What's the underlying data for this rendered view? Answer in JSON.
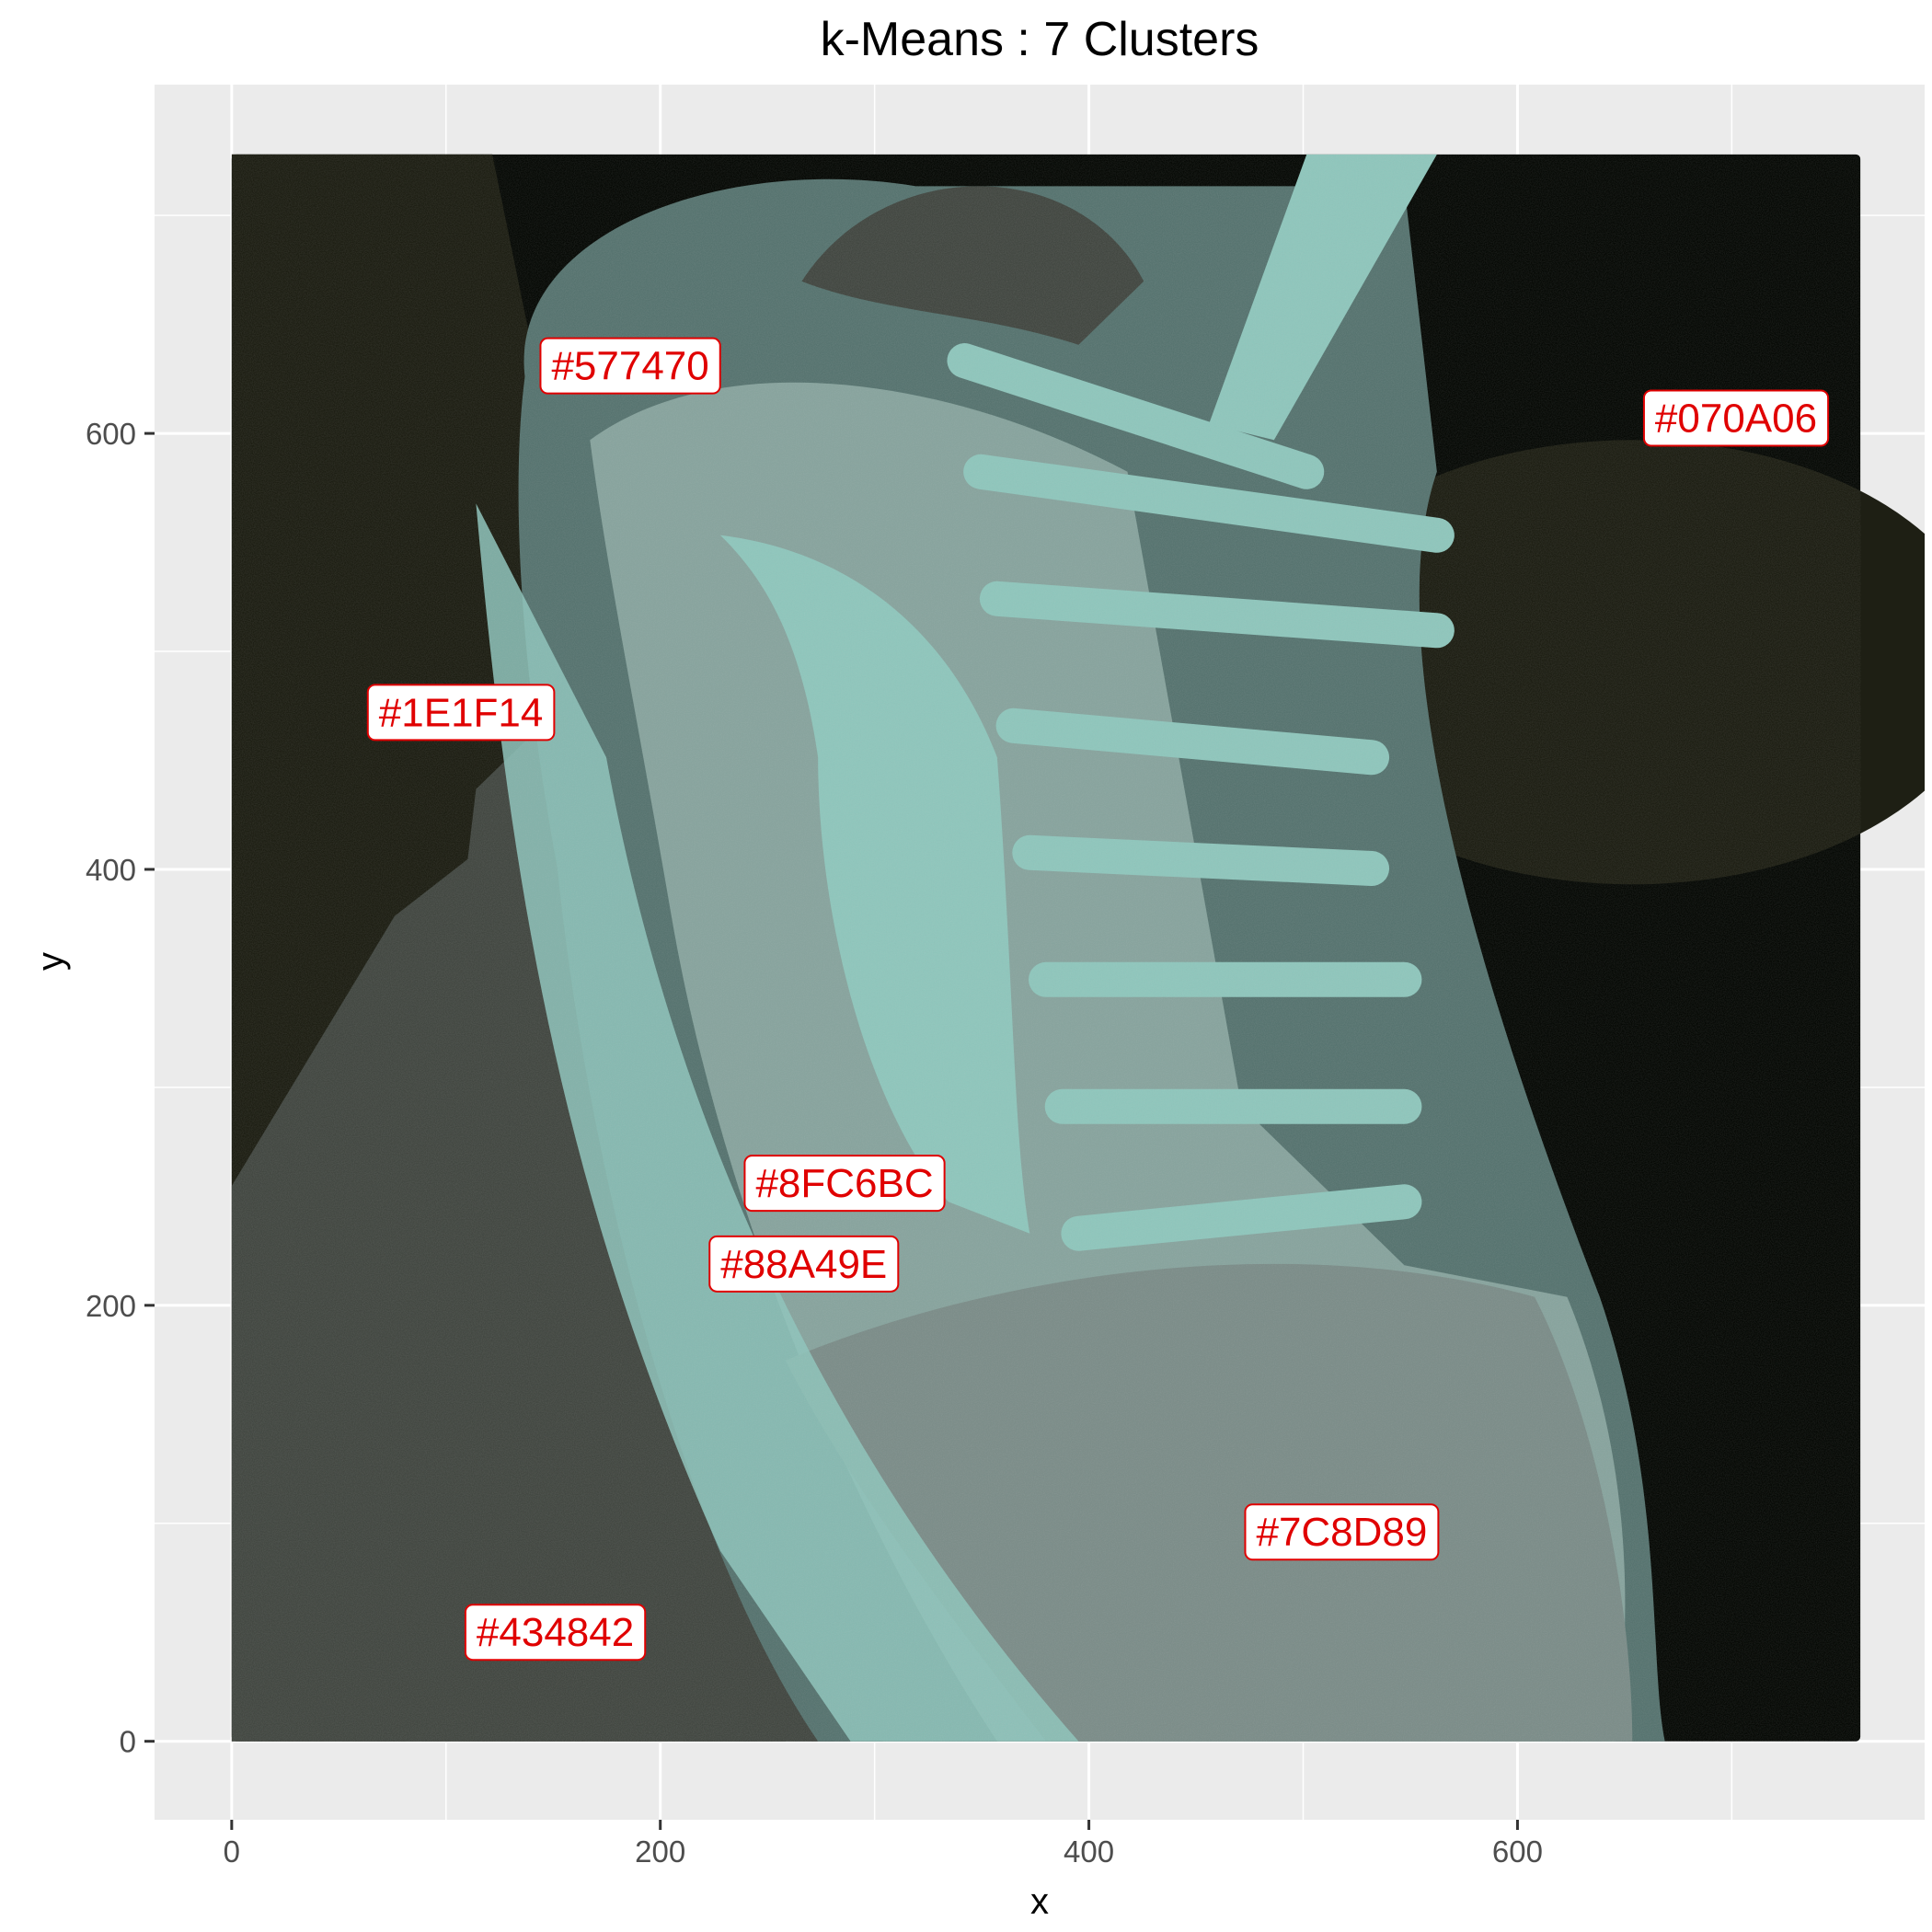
{
  "chart_data": {
    "type": "scatter",
    "title": "k-Means : 7 Clusters",
    "xlabel": "x",
    "ylabel": "y",
    "xlim": [
      -36,
      790
    ],
    "ylim": [
      -36,
      760
    ],
    "image_extent": {
      "x": [
        0,
        760
      ],
      "y": [
        0,
        728
      ]
    },
    "x_ticks": [
      0,
      200,
      400,
      600
    ],
    "y_ticks": [
      0,
      200,
      400,
      600
    ],
    "grid": true,
    "legend": "none",
    "colors": {
      "panel": "#ebebeb",
      "grid": "#ffffff",
      "label_text": "#e00000",
      "label_border": "#e00000",
      "label_fill": "#ffffff"
    },
    "labels": [
      {
        "text": "#577470",
        "x": 186,
        "y": 631,
        "color": "#577470"
      },
      {
        "text": "#070A06",
        "x": 702,
        "y": 607,
        "color": "#070A06"
      },
      {
        "text": "#1E1F14",
        "x": 107,
        "y": 472,
        "color": "#1E1F14"
      },
      {
        "text": "#8FC6BC",
        "x": 286,
        "y": 256,
        "color": "#8FC6BC"
      },
      {
        "text": "#88A49E",
        "x": 267,
        "y": 219,
        "color": "#88A49E"
      },
      {
        "text": "#7C8D89",
        "x": 518,
        "y": 96,
        "color": "#7C8D89"
      },
      {
        "text": "#434842",
        "x": 151,
        "y": 50,
        "color": "#434842"
      }
    ]
  }
}
